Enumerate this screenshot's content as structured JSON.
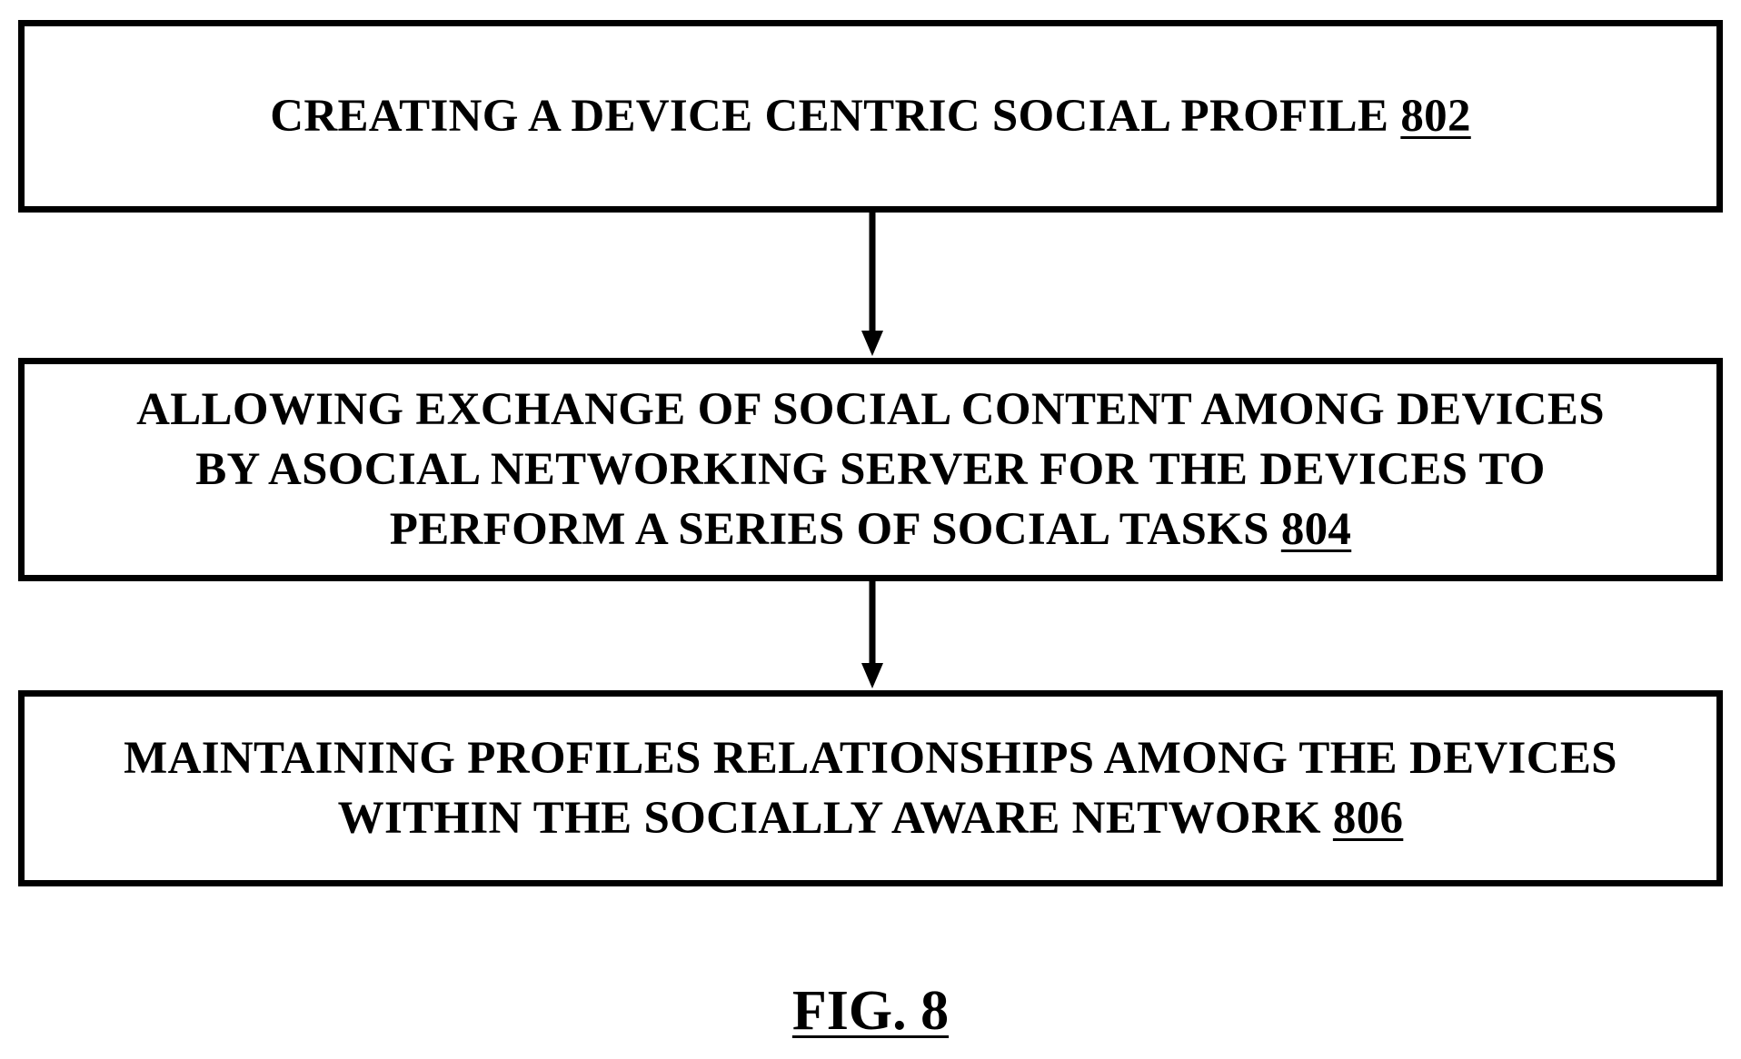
{
  "figure": {
    "label": "FIG. 8"
  },
  "steps": [
    {
      "lines": [
        "CREATING A DEVICE CENTRIC SOCIAL PROFILE"
      ],
      "ref": "802"
    },
    {
      "lines": [
        "ALLOWING EXCHANGE OF SOCIAL CONTENT AMONG DEVICES",
        "BY ASOCIAL NETWORKING SERVER FOR THE DEVICES TO",
        "PERFORM A SERIES OF SOCIAL TASKS"
      ],
      "ref": "804"
    },
    {
      "lines": [
        "MAINTAINING PROFILES RELATIONSHIPS AMONG THE DEVICES",
        "WITHIN THE SOCIALLY AWARE NETWORK"
      ],
      "ref": "806"
    }
  ],
  "colors": {
    "stroke": "#000000",
    "background": "#ffffff"
  }
}
